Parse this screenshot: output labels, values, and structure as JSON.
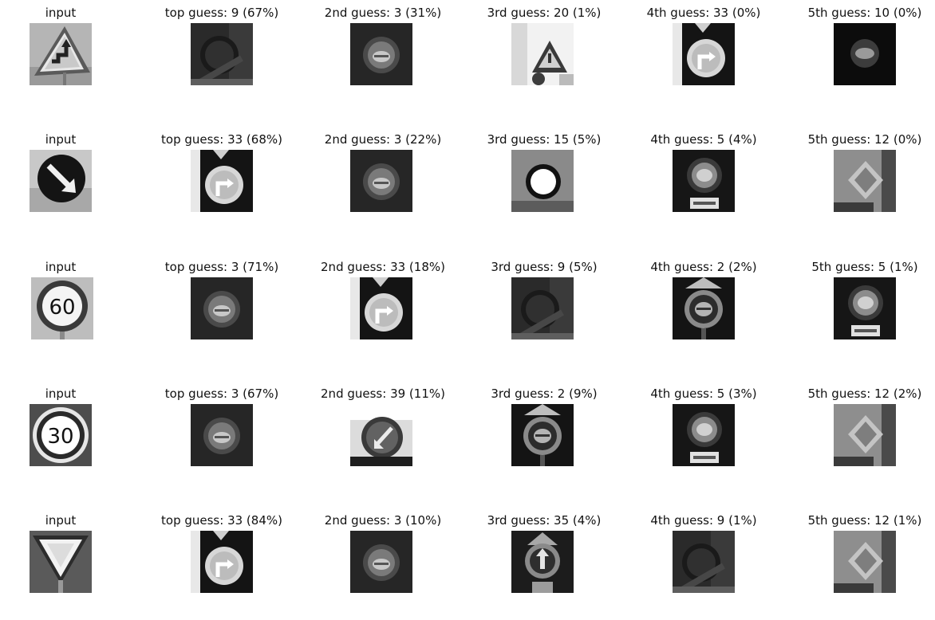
{
  "rows": [
    {
      "input": {
        "title": "input",
        "picture": "road-sign-curvy-road-warning-triangle"
      },
      "guesses": [
        {
          "title": "top guess: 9 (67%)",
          "picture": "sign-no-passing-dark"
        },
        {
          "title": "2nd guess: 3 (31%)",
          "picture": "sign-speed-limit-dark"
        },
        {
          "title": "3rd guess: 20 (1%)",
          "picture": "sign-triangle-bright"
        },
        {
          "title": "4th guess: 33 (0%)",
          "picture": "sign-turn-right-ahead"
        },
        {
          "title": "5th guess: 10 (0%)",
          "picture": "sign-circle-dark"
        }
      ]
    },
    {
      "input": {
        "title": "input",
        "picture": "road-sign-keep-right-arrow"
      },
      "guesses": [
        {
          "title": "top guess: 33 (68%)",
          "picture": "sign-turn-right-ahead"
        },
        {
          "title": "2nd guess: 3 (22%)",
          "picture": "sign-speed-limit-dark"
        },
        {
          "title": "3rd guess: 15 (5%)",
          "picture": "sign-no-vehicles-white-circle"
        },
        {
          "title": "4th guess: 5 (4%)",
          "picture": "sign-speed-limit-plate"
        },
        {
          "title": "5th guess: 12 (0%)",
          "picture": "sign-priority-road-diamond"
        }
      ]
    },
    {
      "input": {
        "title": "input",
        "picture": "road-sign-speed-limit-60",
        "sign_text": "60"
      },
      "guesses": [
        {
          "title": "top guess: 3 (71%)",
          "picture": "sign-speed-limit-dark"
        },
        {
          "title": "2nd guess: 33 (18%)",
          "picture": "sign-turn-right-ahead"
        },
        {
          "title": "3rd guess: 9 (5%)",
          "picture": "sign-no-passing-dark"
        },
        {
          "title": "4th guess: 2 (2%)",
          "picture": "sign-speed-limit-with-triangle"
        },
        {
          "title": "5th guess: 5 (1%)",
          "picture": "sign-speed-limit-plate"
        }
      ]
    },
    {
      "input": {
        "title": "input",
        "picture": "road-sign-speed-limit-30",
        "sign_text": "30"
      },
      "guesses": [
        {
          "title": "top guess: 3 (67%)",
          "picture": "sign-speed-limit-dark"
        },
        {
          "title": "2nd guess: 39 (11%)",
          "picture": "sign-keep-left-bright"
        },
        {
          "title": "3rd guess: 2 (9%)",
          "picture": "sign-speed-limit-with-triangle"
        },
        {
          "title": "4th guess: 5 (3%)",
          "picture": "sign-speed-limit-plate"
        },
        {
          "title": "5th guess: 12 (2%)",
          "picture": "sign-priority-road-diamond"
        }
      ]
    },
    {
      "input": {
        "title": "input",
        "picture": "road-sign-yield-triangle"
      },
      "guesses": [
        {
          "title": "top guess: 33 (84%)",
          "picture": "sign-turn-right-ahead"
        },
        {
          "title": "2nd guess: 3 (10%)",
          "picture": "sign-speed-limit-dark"
        },
        {
          "title": "3rd guess: 35 (4%)",
          "picture": "sign-ahead-only-triangle"
        },
        {
          "title": "4th guess: 9 (1%)",
          "picture": "sign-no-passing-dark"
        },
        {
          "title": "5th guess: 12 (1%)",
          "picture": "sign-priority-road-diamond"
        }
      ]
    }
  ]
}
